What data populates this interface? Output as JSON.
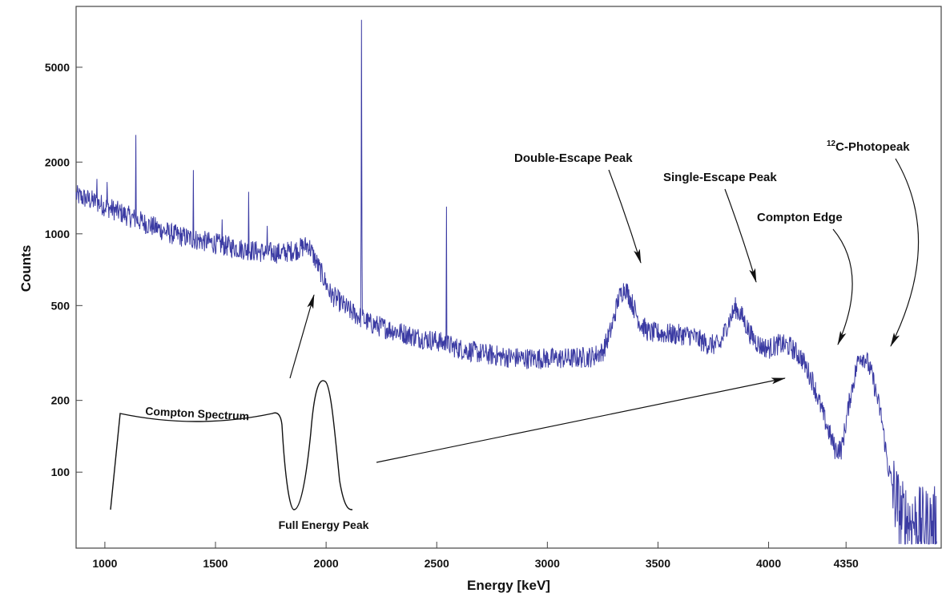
{
  "chart_data": {
    "type": "line",
    "xlabel": "Energy [keV]",
    "ylabel": "Counts",
    "xlim": [
      870,
      4780
    ],
    "ylim": [
      48,
      9000
    ],
    "yscale": "log",
    "x_ticks": [
      1000,
      1500,
      2000,
      2500,
      3000,
      3500,
      4000,
      4350
    ],
    "y_ticks": [
      100,
      200,
      500,
      1000,
      2000,
      5000
    ],
    "grid": false,
    "line_color": "#3b3ba3",
    "points": [
      [
        870,
        1450
      ],
      [
        950,
        1370
      ],
      [
        1050,
        1250
      ],
      [
        1140,
        1150
      ],
      [
        1200,
        1090
      ],
      [
        1300,
        1000
      ],
      [
        1400,
        950
      ],
      [
        1500,
        910
      ],
      [
        1600,
        870
      ],
      [
        1700,
        840
      ],
      [
        1800,
        830
      ],
      [
        1870,
        860
      ],
      [
        1920,
        900
      ],
      [
        1940,
        820
      ],
      [
        1980,
        680
      ],
      [
        2020,
        560
      ],
      [
        2060,
        520
      ],
      [
        2100,
        480
      ],
      [
        2200,
        420
      ],
      [
        2300,
        395
      ],
      [
        2400,
        370
      ],
      [
        2500,
        355
      ],
      [
        2600,
        330
      ],
      [
        2700,
        315
      ],
      [
        2800,
        305
      ],
      [
        2900,
        300
      ],
      [
        3000,
        300
      ],
      [
        3100,
        300
      ],
      [
        3200,
        305
      ],
      [
        3250,
        320
      ],
      [
        3290,
        400
      ],
      [
        3320,
        530
      ],
      [
        3350,
        600
      ],
      [
        3380,
        520
      ],
      [
        3420,
        420
      ],
      [
        3460,
        385
      ],
      [
        3550,
        380
      ],
      [
        3650,
        375
      ],
      [
        3720,
        345
      ],
      [
        3780,
        340
      ],
      [
        3810,
        410
      ],
      [
        3850,
        490
      ],
      [
        3880,
        450
      ],
      [
        3920,
        375
      ],
      [
        3960,
        340
      ],
      [
        4000,
        330
      ],
      [
        4050,
        345
      ],
      [
        4100,
        335
      ],
      [
        4150,
        300
      ],
      [
        4200,
        240
      ],
      [
        4250,
        170
      ],
      [
        4300,
        125
      ],
      [
        4330,
        125
      ],
      [
        4370,
        210
      ],
      [
        4410,
        310
      ],
      [
        4440,
        300
      ],
      [
        4470,
        250
      ],
      [
        4510,
        170
      ],
      [
        4540,
        105
      ],
      [
        4570,
        80
      ],
      [
        4600,
        65
      ],
      [
        4650,
        62
      ],
      [
        4700,
        60
      ],
      [
        4760,
        61
      ]
    ],
    "spikes": [
      {
        "x": 965,
        "peak": 1700
      },
      {
        "x": 1010,
        "peak": 1650
      },
      {
        "x": 1140,
        "peak": 2600
      },
      {
        "x": 1400,
        "peak": 1850
      },
      {
        "x": 1530,
        "peak": 1150
      },
      {
        "x": 1650,
        "peak": 1500
      },
      {
        "x": 1735,
        "peak": 1080
      },
      {
        "x": 2160,
        "peak": 7900
      },
      {
        "x": 2545,
        "peak": 1300
      }
    ],
    "annotations": [
      {
        "text": "Double-Escape Peak",
        "target": [
          3330,
          640
        ]
      },
      {
        "text": "Single-Escape Peak",
        "target": [
          3850,
          510
        ]
      },
      {
        "text": "Compton Edge",
        "target": [
          4220,
          330
        ]
      },
      {
        "text_prefix": "12",
        "text": "C-Photopeak",
        "target": [
          4370,
          330
        ]
      }
    ],
    "inset": {
      "labels": {
        "compton_spectrum": "Compton Spectrum",
        "full_energy_peak": "Full Energy Peak"
      }
    }
  }
}
